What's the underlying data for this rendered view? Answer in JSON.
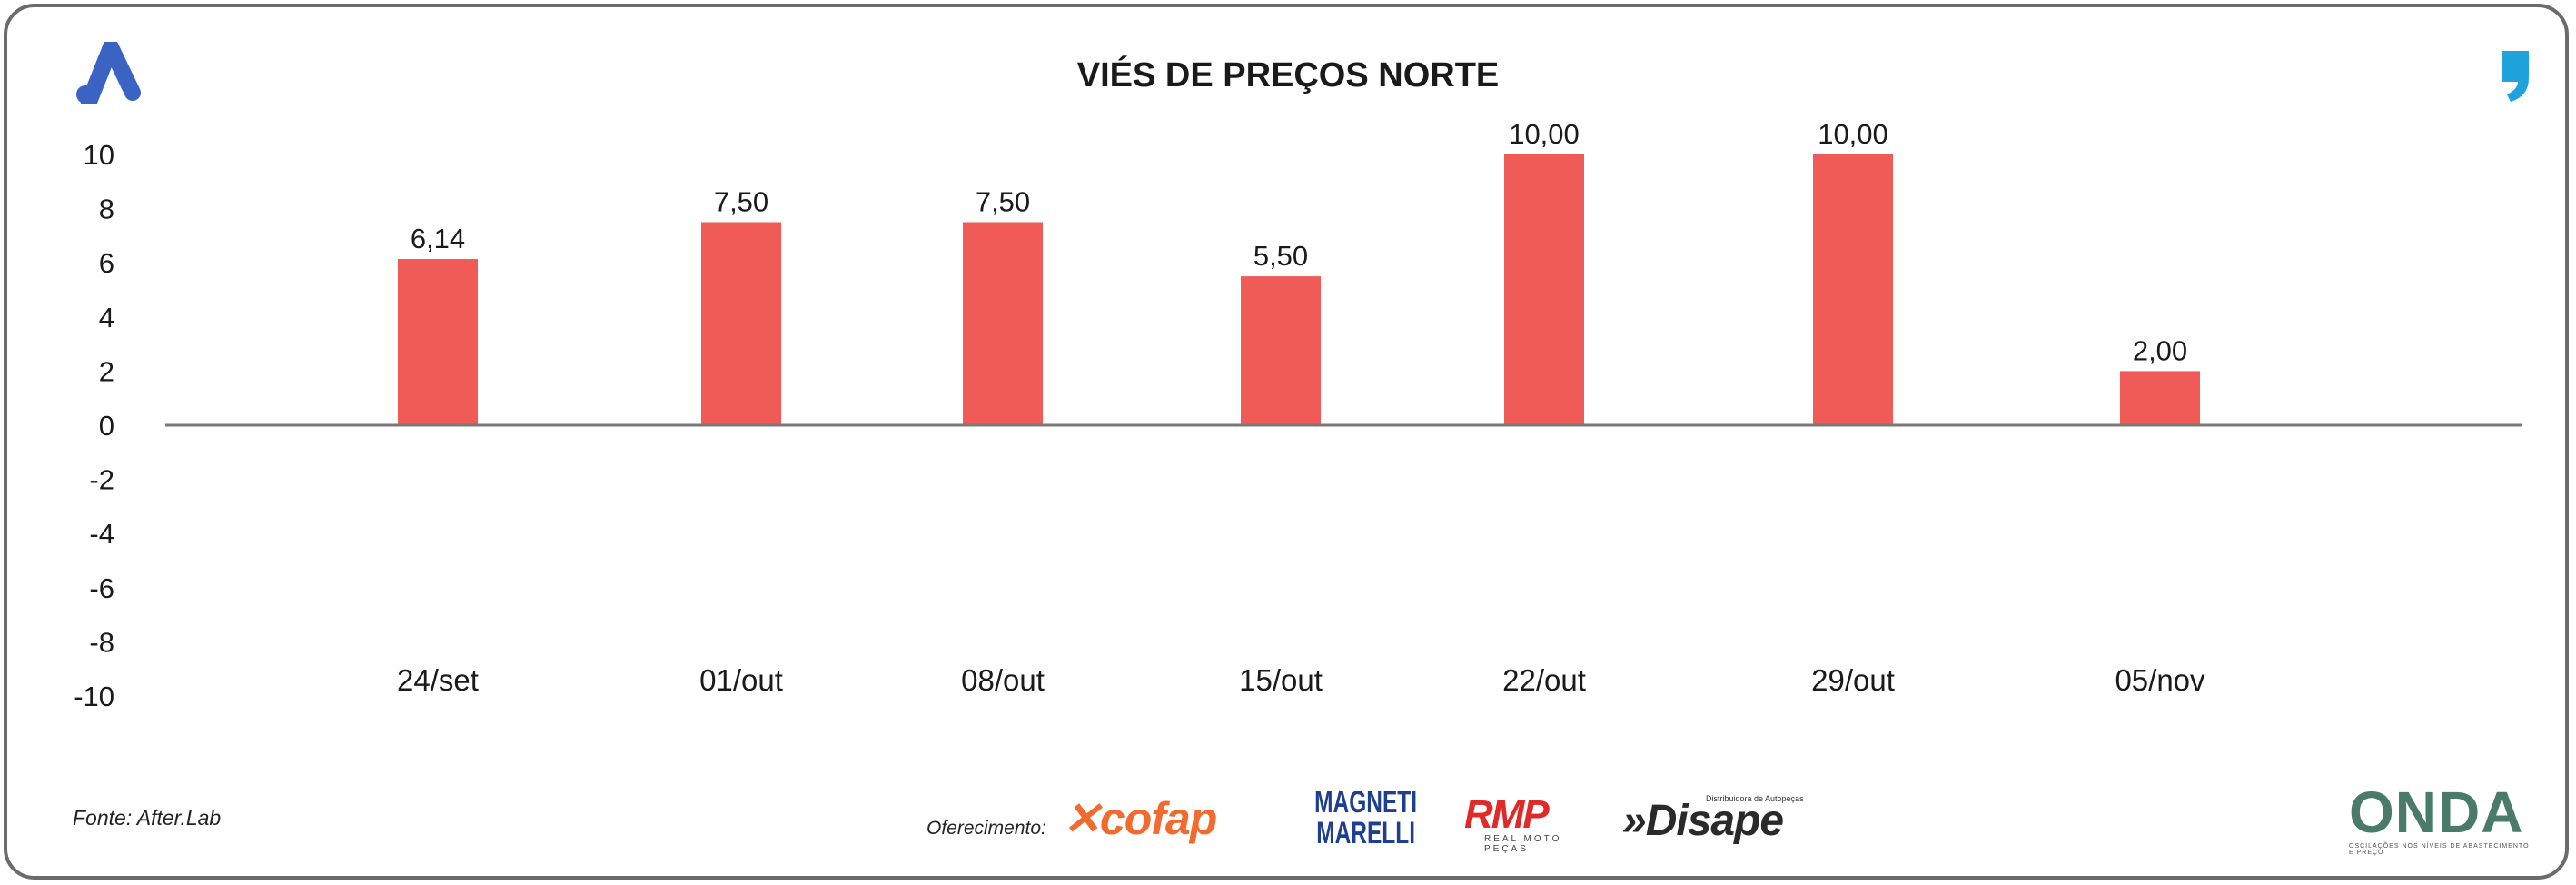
{
  "header": {
    "title": "VIÉS DE PREÇOS NORTE",
    "left_logo_icon": "brand-a-logo-icon",
    "right_logo_icon": "quote-mark-icon",
    "brand_blue": "#3b63c4",
    "brand_cyan": "#1fa3dd"
  },
  "chart_data": {
    "type": "bar",
    "categories": [
      "24/set",
      "01/out",
      "08/out",
      "15/out",
      "22/out",
      "29/out",
      "05/nov"
    ],
    "series": [
      {
        "values": [
          6.14,
          7.5,
          7.5,
          5.5,
          10.0,
          10.0,
          2.0
        ],
        "labels": [
          "6,14",
          "7,50",
          "7,50",
          "5,50",
          "10,00",
          "10,00",
          "2,00"
        ],
        "color": "#f05a57"
      }
    ],
    "ylim": [
      -10,
      10
    ],
    "yticks": [
      "10",
      "8",
      "6",
      "4",
      "2",
      "0",
      "-2",
      "-4",
      "-6",
      "-8",
      "-10"
    ],
    "grid": false,
    "legend": "none",
    "title": "VIÉS DE PREÇOS NORTE",
    "xlabel": "",
    "ylabel": ""
  },
  "footer": {
    "source": "Fonte: After.Lab",
    "sponsor_label": "Oferecimento:",
    "sponsors": {
      "cofap": "cofap",
      "magneti_line1": "MAGNETI",
      "magneti_line2": "MARELLI",
      "rmp": "RMP",
      "rmp_sub": "REAL MOTO PEÇAS",
      "disape": "»Disape",
      "disape_sub": "Distribuidora de Autopeças",
      "onda": "ONDA",
      "onda_sub": "OSCILAÇÕES NOS NÍVEIS DE ABASTECIMENTO E PREÇO"
    }
  }
}
